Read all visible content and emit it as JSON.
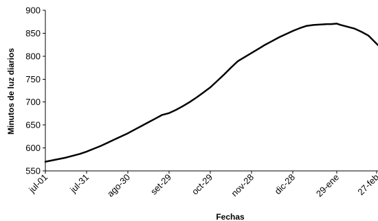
{
  "chart_data": {
    "type": "line",
    "title": "",
    "xlabel": "Fechas",
    "ylabel": "Minutos de luz diarios",
    "ylim": [
      550,
      900
    ],
    "yticks": [
      550,
      600,
      650,
      700,
      750,
      800,
      850,
      900
    ],
    "xlim": [
      0,
      242
    ],
    "xticks": [
      {
        "day": 0,
        "label": "jul-01"
      },
      {
        "day": 30,
        "label": "jul-31"
      },
      {
        "day": 60,
        "label": "ago-30"
      },
      {
        "day": 90,
        "label": "set-29"
      },
      {
        "day": 120,
        "label": "oct-29"
      },
      {
        "day": 150,
        "label": "nov-28"
      },
      {
        "day": 180,
        "label": "dic-28"
      },
      {
        "day": 212,
        "label": "29-ene"
      },
      {
        "day": 241,
        "label": "27-feb"
      }
    ],
    "grid": false,
    "legend": "none",
    "line_color": "#000000",
    "series": [
      {
        "x": [
          0,
          5,
          10,
          15,
          20,
          25,
          30,
          35,
          40,
          45,
          50,
          55,
          60,
          65,
          70,
          75,
          80,
          85,
          90,
          95,
          100,
          105,
          110,
          115,
          120,
          125,
          130,
          135,
          140,
          145,
          150,
          155,
          160,
          165,
          170,
          175,
          180,
          185,
          190,
          195,
          200,
          205,
          208,
          212,
          215,
          220,
          225,
          230,
          235,
          242
        ],
        "values": [
          570,
          573,
          576,
          579,
          583,
          587,
          592,
          598,
          604,
          611,
          618,
          625,
          632,
          640,
          648,
          656,
          664,
          672,
          676,
          683,
          691,
          700,
          710,
          721,
          732,
          746,
          760,
          775,
          789,
          798,
          807,
          816,
          825,
          833,
          841,
          848,
          855,
          861,
          866,
          868,
          869,
          870,
          870,
          871,
          868,
          864,
          860,
          853,
          845,
          824
        ]
      }
    ]
  }
}
